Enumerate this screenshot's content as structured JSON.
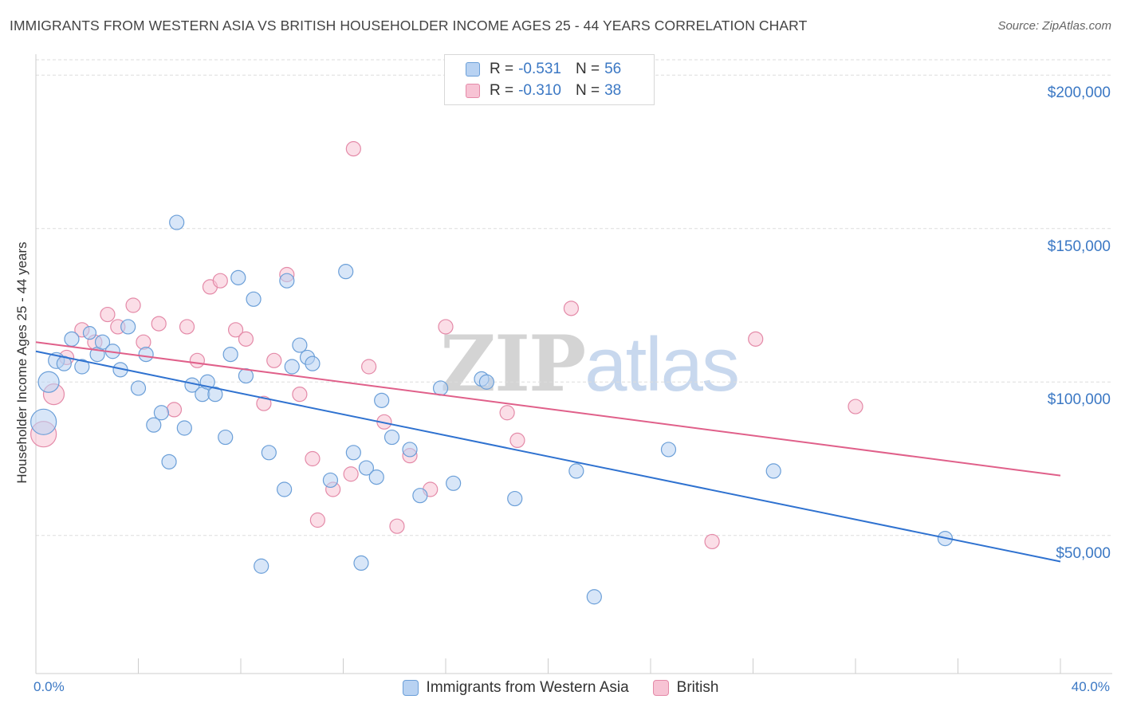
{
  "header": {
    "title": "IMMIGRANTS FROM WESTERN ASIA VS BRITISH HOUSEHOLDER INCOME AGES 25 - 44 YEARS CORRELATION CHART",
    "source": "Source: ZipAtlas.com"
  },
  "watermark": {
    "zip": "ZIP",
    "atlas": "atlas"
  },
  "colors": {
    "blue_fill": "#b8d2f2",
    "blue_stroke": "#6b9fd8",
    "blue_line": "#2f72d0",
    "pink_fill": "#f7c3d4",
    "pink_stroke": "#e48aa8",
    "pink_line": "#e0608a",
    "grid": "#dddddd",
    "axis_text": "#3b78c4"
  },
  "legend": {
    "rows": [
      {
        "r_label": "R = ",
        "r_value": "-0.531",
        "n_label": "N = ",
        "n_value": "56"
      },
      {
        "r_label": "R = ",
        "r_value": "-0.310",
        "n_label": "N = ",
        "n_value": "38"
      }
    ]
  },
  "bottom_legend": {
    "items": [
      "Immigrants from Western Asia",
      "British"
    ]
  },
  "chart_data": {
    "type": "scatter",
    "title": "IMMIGRANTS FROM WESTERN ASIA VS BRITISH HOUSEHOLDER INCOME AGES 25 - 44 YEARS CORRELATION CHART",
    "ylabel": "Householder Income Ages 25 - 44 years",
    "xlabel": "",
    "x_tick_labels": [
      "0.0%",
      "40.0%"
    ],
    "y_tick_labels": [
      "$200,000",
      "$150,000",
      "$100,000",
      "$50,000"
    ],
    "y_ticks": [
      200000,
      150000,
      100000,
      50000
    ],
    "xlim": [
      0,
      40
    ],
    "ylim": [
      5000,
      205000
    ],
    "grid": true,
    "legend_position": "top-center",
    "series": [
      {
        "name": "Immigrants from Western Asia",
        "points": [
          [
            0.3,
            87000,
            16
          ],
          [
            0.5,
            100000,
            13
          ],
          [
            0.8,
            107000,
            10
          ],
          [
            1.1,
            106000,
            9
          ],
          [
            1.4,
            114000,
            9
          ],
          [
            1.8,
            105000,
            9
          ],
          [
            2.1,
            116000,
            8
          ],
          [
            2.4,
            109000,
            9
          ],
          [
            2.6,
            113000,
            9
          ],
          [
            3.0,
            110000,
            9
          ],
          [
            3.3,
            104000,
            9
          ],
          [
            3.6,
            118000,
            9
          ],
          [
            4.0,
            98000,
            9
          ],
          [
            4.3,
            109000,
            9
          ],
          [
            4.6,
            86000,
            9
          ],
          [
            4.9,
            90000,
            9
          ],
          [
            5.2,
            74000,
            9
          ],
          [
            5.5,
            152000,
            9
          ],
          [
            5.8,
            85000,
            9
          ],
          [
            6.1,
            99000,
            9
          ],
          [
            6.5,
            96000,
            9
          ],
          [
            6.7,
            100000,
            9
          ],
          [
            7.0,
            96000,
            9
          ],
          [
            7.4,
            82000,
            9
          ],
          [
            7.6,
            109000,
            9
          ],
          [
            7.9,
            134000,
            9
          ],
          [
            8.2,
            102000,
            9
          ],
          [
            8.5,
            127000,
            9
          ],
          [
            8.8,
            40000,
            9
          ],
          [
            9.1,
            77000,
            9
          ],
          [
            9.7,
            65000,
            9
          ],
          [
            9.8,
            133000,
            9
          ],
          [
            10.3,
            112000,
            9
          ],
          [
            10.6,
            108000,
            9
          ],
          [
            10.8,
            106000,
            9
          ],
          [
            11.5,
            68000,
            9
          ],
          [
            12.4,
            77000,
            9
          ],
          [
            12.9,
            72000,
            9
          ],
          [
            13.3,
            69000,
            9
          ],
          [
            13.9,
            82000,
            9
          ],
          [
            10.0,
            105000,
            9
          ],
          [
            12.1,
            136000,
            9
          ],
          [
            13.5,
            94000,
            9
          ],
          [
            14.6,
            78000,
            9
          ],
          [
            15.8,
            98000,
            9
          ],
          [
            16.3,
            67000,
            9
          ],
          [
            17.4,
            101000,
            9
          ],
          [
            17.6,
            100000,
            9
          ],
          [
            18.7,
            62000,
            9
          ],
          [
            21.1,
            71000,
            9
          ],
          [
            21.8,
            30000,
            9
          ],
          [
            24.7,
            78000,
            9
          ],
          [
            28.8,
            71000,
            9
          ],
          [
            35.5,
            49000,
            9
          ],
          [
            12.7,
            41000,
            9
          ],
          [
            15.0,
            63000,
            9
          ]
        ],
        "trend": {
          "x": [
            0,
            40
          ],
          "y": [
            110000,
            41500
          ]
        }
      },
      {
        "name": "British",
        "points": [
          [
            0.3,
            83000,
            16
          ],
          [
            0.7,
            96000,
            13
          ],
          [
            1.2,
            108000,
            9
          ],
          [
            1.8,
            117000,
            9
          ],
          [
            2.3,
            113000,
            9
          ],
          [
            2.8,
            122000,
            9
          ],
          [
            3.2,
            118000,
            9
          ],
          [
            3.8,
            125000,
            9
          ],
          [
            4.2,
            113000,
            9
          ],
          [
            4.8,
            119000,
            9
          ],
          [
            5.4,
            91000,
            9
          ],
          [
            5.9,
            118000,
            9
          ],
          [
            6.3,
            107000,
            9
          ],
          [
            6.8,
            131000,
            9
          ],
          [
            7.2,
            133000,
            9
          ],
          [
            7.8,
            117000,
            9
          ],
          [
            8.2,
            114000,
            9
          ],
          [
            8.9,
            93000,
            9
          ],
          [
            9.3,
            107000,
            9
          ],
          [
            9.8,
            135000,
            9
          ],
          [
            10.3,
            96000,
            9
          ],
          [
            10.8,
            75000,
            9
          ],
          [
            11.0,
            55000,
            9
          ],
          [
            11.6,
            65000,
            9
          ],
          [
            12.3,
            70000,
            9
          ],
          [
            12.4,
            176000,
            9
          ],
          [
            13.0,
            105000,
            9
          ],
          [
            13.6,
            87000,
            9
          ],
          [
            14.1,
            53000,
            9
          ],
          [
            14.6,
            76000,
            9
          ],
          [
            15.4,
            65000,
            9
          ],
          [
            16.0,
            118000,
            9
          ],
          [
            18.4,
            90000,
            9
          ],
          [
            18.8,
            81000,
            9
          ],
          [
            20.9,
            124000,
            9
          ],
          [
            26.4,
            48000,
            9
          ],
          [
            28.1,
            114000,
            9
          ],
          [
            32.0,
            92000,
            9
          ]
        ],
        "trend": {
          "x": [
            0,
            40
          ],
          "y": [
            113000,
            69500
          ]
        }
      }
    ]
  }
}
